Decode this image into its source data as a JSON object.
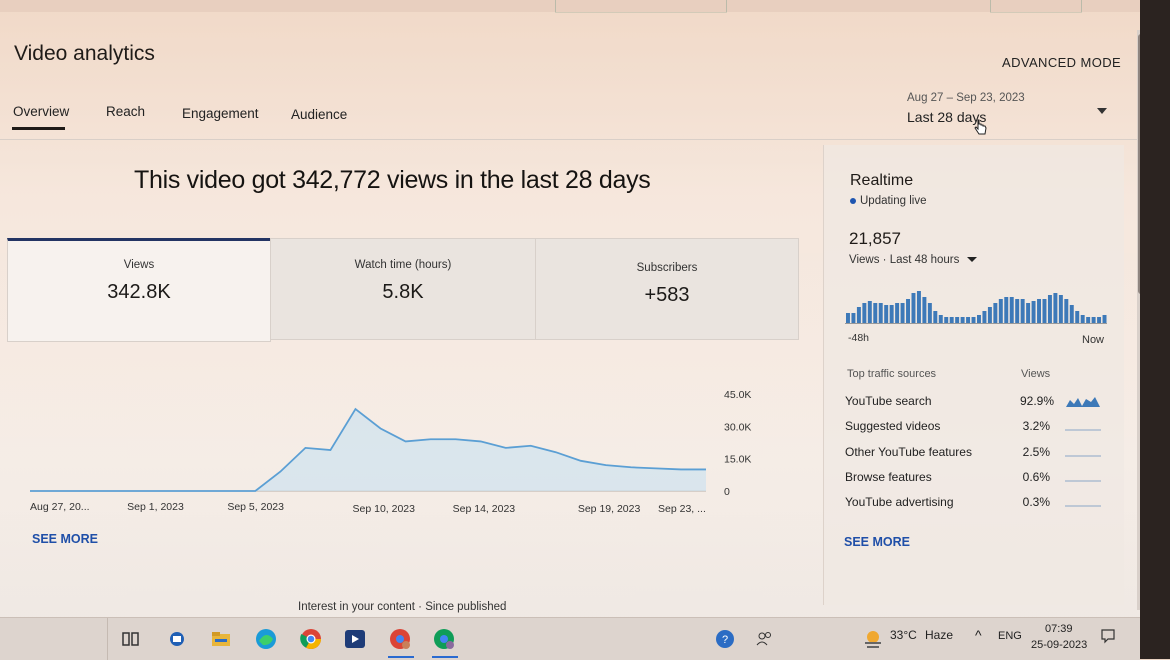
{
  "header": {
    "title": "Video analytics",
    "advanced_mode": "ADVANCED MODE",
    "tabs": [
      {
        "label": "Overview"
      },
      {
        "label": "Reach"
      },
      {
        "label": "Engagement"
      },
      {
        "label": "Audience"
      }
    ],
    "date_range": "Aug 27 – Sep 23, 2023",
    "date_preset": "Last 28 days"
  },
  "overview": {
    "headline": "This video got 342,772 views in the last 28 days",
    "metrics": [
      {
        "label": "Views",
        "value": "342.8K"
      },
      {
        "label": "Watch time (hours)",
        "value": "5.8K"
      },
      {
        "label": "Subscribers",
        "value": "+583"
      }
    ],
    "see_more": "SEE MORE"
  },
  "chart_data": {
    "type": "area",
    "x_tick_labels": [
      "Aug 27, 20...",
      "Sep 1, 2023",
      "Sep 5, 2023",
      "Sep 10, 2023",
      "Sep 14, 2023",
      "Sep 19, 2023",
      "Sep 23, ..."
    ],
    "y_tick_labels": [
      "45.0K",
      "30.0K",
      "15.0K",
      "0"
    ],
    "ylim": [
      0,
      45000
    ],
    "series": [
      {
        "values": [
          0,
          0,
          0,
          0,
          0,
          0,
          0,
          0,
          0,
          0,
          9000,
          20000,
          19000,
          38000,
          29000,
          23000,
          24000,
          24000,
          23000,
          20000,
          21000,
          18000,
          14000,
          12000,
          11000,
          10500,
          10000,
          10000
        ]
      }
    ],
    "color": "#5b9fd4"
  },
  "realtime": {
    "title": "Realtime",
    "status": "Updating live",
    "count": "21,857",
    "subtitle": "Views · Last 48 hours",
    "start_label": "-48h",
    "end_label": "Now",
    "hourly_bars": [
      5,
      5,
      8,
      10,
      11,
      10,
      10,
      9,
      9,
      10,
      10,
      12,
      15,
      16,
      13,
      10,
      6,
      4,
      3,
      3,
      3,
      3,
      3,
      3,
      4,
      6,
      8,
      10,
      12,
      13,
      13,
      12,
      12,
      10,
      11,
      12,
      12,
      14,
      15,
      14,
      12,
      9,
      6,
      4,
      3,
      3,
      3,
      4
    ],
    "traffic_header": "Top traffic sources",
    "traffic_views_header": "Views",
    "traffic_sources": [
      {
        "name": "YouTube search",
        "percent": "92.9%"
      },
      {
        "name": "Suggested videos",
        "percent": "3.2%"
      },
      {
        "name": "Other YouTube features",
        "percent": "2.5%"
      },
      {
        "name": "Browse features",
        "percent": "0.6%"
      },
      {
        "name": "YouTube advertising",
        "percent": "0.3%"
      }
    ],
    "see_more": "SEE MORE"
  },
  "bottom_caption": "Interest in your content · Since published",
  "taskbar": {
    "weather_temp": "33°C",
    "weather_desc": "Haze",
    "language": "ENG",
    "time": "07:39",
    "date": "25-09-2023",
    "apps": [
      "task-view-icon",
      "mail-icon",
      "file-explorer-icon",
      "edge-icon",
      "chrome-icon",
      "media-app-icon",
      "chrome-profile-icon",
      "chrome-profile-2-icon"
    ]
  }
}
